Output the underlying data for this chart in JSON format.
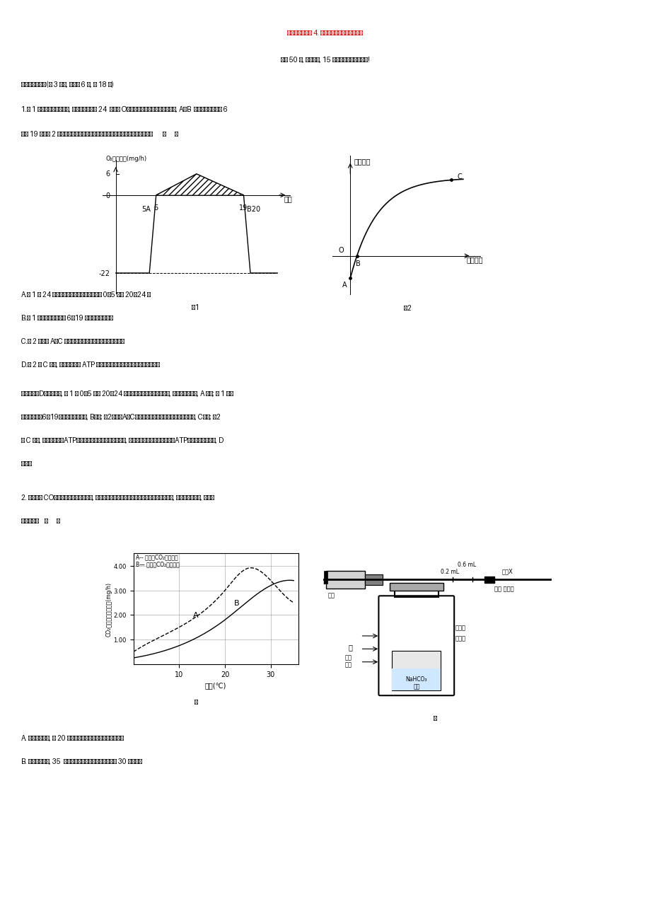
{
  "title": "高考重点冲关练 4. 光合作用和细胞呼吸的综合",
  "subtitle": "满分 50 分, 攻坚克难, 15 分钟突破高考易失分点!",
  "section1": "一、单项选择题(共 3 小题, 每小题 6 分, 共 18 分)",
  "q1_line1": "1.图 1 表示夏季晴朗的一天, 某种绿色植物在 24  小时内 O₂吸收和释放速率的变化示意图, A、B  点对应时刻分别为 6",
  "q1_line2": "点和 19 点。图 2 表示光照强度与植物光合速率的关系。下列有关说法错误的是       （      ）",
  "fig1_label": "图1",
  "fig2_label": "图2",
  "optA": "A.图 1 中 24 小时内不进行光合作用的时段是 0～5 点和 20～24 点",
  "optB": "B.图 1 的阴影部分可表示 6～19 点有机物的积累量",
  "optC": "C.图 2 中限制 A～C 段光合速率的主要外界因素是光照强度",
  "optD": "D.图 2 的 C 点时, 每个细胞合成 ATP 的场所都有细胞质基质、线粒体、叶绿体",
  "ana_head": "【解析】",
  "ana1": "选D。据图分析, 图 1 中 0～5 点和 20～24 点氧气吸收速率一直保持最大, 只进行细胞呼吸, A 正确; 图 1 的阴",
  "ana2": "影部分可表示6～19点有机物的积累量, B正确; 图2中限制A～C段光合速率的主要外界因素是光照强度, C正确; 图2",
  "ana3": "的 C 点时, 每个细胞合成ATP的场所都有细胞质基质、线粒体, 能够进行光合作用的细胞产生ATP的场所含有叶绿体, D",
  "ana4": "错误。",
  "q2_line1": "2. 以测定的 CO₂吸收量与释放量为指标, 研究温度对某绿色植物光合作用与细胞呼吸的影响, 结果如图甲所示, 下列分",
  "q2_line2": "析正确的是    （      ）",
  "opt2A": "A. 光照相同时间, 在 20 ℃条件下植物积累的有机物的量最多",
  "opt2B": "B. 光照相同时间, 35  ℃时光合作用制造的有机物的量与 30 ℃时相等",
  "bg_color": "#ffffff",
  "title_color": "#cc0000"
}
